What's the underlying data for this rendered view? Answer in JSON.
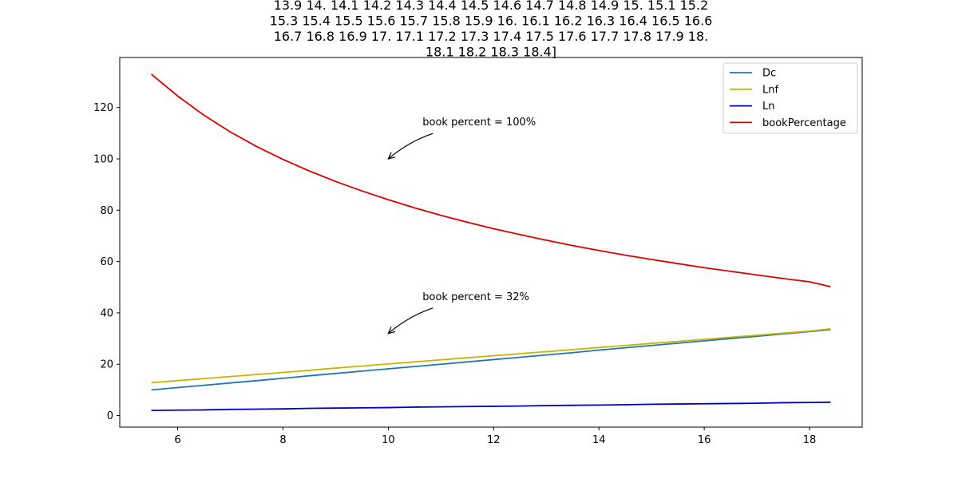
{
  "chart_data": {
    "type": "line",
    "title_lines": [
      "13.9 14.  14.1 14.2 14.3 14.4 14.5 14.6 14.7 14.8 14.9 15.  15.1 15.2",
      "15.3 15.4 15.5 15.6 15.7 15.8 15.9 16.  16.1 16.2 16.3 16.4 16.5 16.6",
      "16.7 16.8 16.9 17.  17.1 17.2 17.3 17.4 17.5 17.6 17.7 17.8 17.9 18.",
      "18.1 18.2 18.3 18.4]"
    ],
    "xlabel": "",
    "ylabel": "",
    "xlim": [
      4.9,
      19.0
    ],
    "ylim": [
      -4.5,
      139.5
    ],
    "xticks": [
      6,
      8,
      10,
      12,
      14,
      16,
      18
    ],
    "yticks": [
      0,
      20,
      40,
      60,
      80,
      100,
      120
    ],
    "grid": false,
    "legend_position": "top-right",
    "x": [
      5.5,
      6.0,
      6.5,
      7.0,
      7.5,
      8.0,
      8.5,
      9.0,
      9.5,
      10.0,
      10.5,
      11.0,
      11.5,
      12.0,
      12.5,
      13.0,
      13.5,
      14.0,
      14.5,
      15.0,
      15.5,
      16.0,
      16.5,
      17.0,
      17.5,
      18.0,
      18.4
    ],
    "series": [
      {
        "name": "Dc",
        "color": "#1f77b4",
        "values": [
          10.0,
          10.9,
          11.8,
          12.7,
          13.6,
          14.5,
          15.5,
          16.4,
          17.3,
          18.2,
          19.1,
          20.0,
          20.9,
          21.8,
          22.7,
          23.6,
          24.5,
          25.5,
          26.4,
          27.3,
          28.2,
          29.1,
          30.0,
          30.9,
          31.8,
          32.7,
          33.5
        ]
      },
      {
        "name": "Lnf",
        "color": "#c8b400",
        "values": [
          12.8,
          13.6,
          14.4,
          15.2,
          16.0,
          16.8,
          17.6,
          18.5,
          19.3,
          20.1,
          20.9,
          21.7,
          22.5,
          23.3,
          24.1,
          24.9,
          25.7,
          26.5,
          27.3,
          28.1,
          28.9,
          29.7,
          30.5,
          31.3,
          32.1,
          32.9,
          33.8
        ]
      },
      {
        "name": "Ln",
        "color": "#0000cc",
        "values": [
          2.0,
          2.1,
          2.2,
          2.4,
          2.5,
          2.6,
          2.8,
          2.9,
          3.0,
          3.1,
          3.3,
          3.4,
          3.5,
          3.6,
          3.7,
          3.9,
          4.0,
          4.1,
          4.2,
          4.4,
          4.5,
          4.6,
          4.7,
          4.8,
          5.0,
          5.1,
          5.2
        ]
      },
      {
        "name": "bookPercentage",
        "color": "#dd0000",
        "values": [
          133.0,
          124.5,
          117.0,
          110.5,
          104.8,
          99.8,
          95.3,
          91.2,
          87.5,
          84.1,
          80.9,
          78.0,
          75.3,
          72.8,
          70.5,
          68.3,
          66.2,
          64.3,
          62.5,
          60.8,
          59.2,
          57.6,
          56.2,
          54.8,
          53.4,
          52.1,
          50.2
        ]
      }
    ],
    "annotations": [
      {
        "text": "book percent = 100%",
        "text_x": 10.65,
        "text_y": 113,
        "arrow_to_x": 10.0,
        "arrow_to_y": 100
      },
      {
        "text": "book percent = 32%",
        "text_x": 10.65,
        "text_y": 45,
        "arrow_to_x": 10.0,
        "arrow_to_y": 32
      }
    ]
  }
}
